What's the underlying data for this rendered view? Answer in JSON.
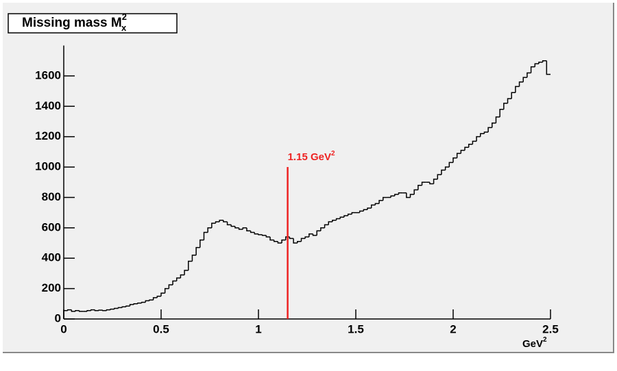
{
  "chart_data": {
    "type": "histogram",
    "title": {
      "text": "Missing mass M",
      "sup": "2",
      "sub": "x"
    },
    "x_label": {
      "text": "GeV",
      "sup": "2"
    },
    "annotation": {
      "text": "1.15 GeV",
      "sup": "2",
      "x": 1.15,
      "y": 1000,
      "color": "#ee2222"
    },
    "color": "#000000",
    "bins": [
      0,
      0.02,
      0.04,
      0.06,
      0.08,
      0.1,
      0.12,
      0.14,
      0.16,
      0.18,
      0.2,
      0.22,
      0.24,
      0.26,
      0.28,
      0.3,
      0.32,
      0.34,
      0.36,
      0.38,
      0.4,
      0.42,
      0.44,
      0.46,
      0.48,
      0.5,
      0.52,
      0.54,
      0.56,
      0.58,
      0.6,
      0.62,
      0.64,
      0.66,
      0.68,
      0.7,
      0.72,
      0.74,
      0.76,
      0.78,
      0.8,
      0.82,
      0.84,
      0.86,
      0.88,
      0.9,
      0.92,
      0.94,
      0.96,
      0.98,
      1,
      1.02,
      1.04,
      1.06,
      1.08,
      1.1,
      1.12,
      1.14,
      1.16,
      1.18,
      1.2,
      1.22,
      1.24,
      1.26,
      1.28,
      1.3,
      1.32,
      1.34,
      1.36,
      1.38,
      1.4,
      1.42,
      1.44,
      1.46,
      1.48,
      1.5,
      1.52,
      1.54,
      1.56,
      1.58,
      1.6,
      1.62,
      1.64,
      1.66,
      1.68,
      1.7,
      1.72,
      1.74,
      1.76,
      1.78,
      1.8,
      1.82,
      1.84,
      1.86,
      1.88,
      1.9,
      1.92,
      1.94,
      1.96,
      1.98,
      2,
      2.02,
      2.04,
      2.06,
      2.08,
      2.1,
      2.12,
      2.14,
      2.16,
      2.18,
      2.2,
      2.22,
      2.24,
      2.26,
      2.28,
      2.3,
      2.32,
      2.34,
      2.36,
      2.38,
      2.4,
      2.42,
      2.44,
      2.46,
      2.48,
      2.5
    ],
    "values": [
      55,
      60,
      50,
      55,
      50,
      50,
      55,
      60,
      55,
      58,
      55,
      60,
      65,
      70,
      75,
      80,
      85,
      95,
      100,
      105,
      110,
      120,
      125,
      140,
      150,
      170,
      200,
      225,
      250,
      270,
      290,
      320,
      380,
      420,
      470,
      520,
      570,
      600,
      630,
      640,
      650,
      640,
      620,
      610,
      600,
      590,
      600,
      580,
      570,
      560,
      555,
      550,
      540,
      520,
      510,
      500,
      520,
      540,
      530,
      500,
      510,
      530,
      540,
      560,
      550,
      580,
      600,
      620,
      640,
      650,
      660,
      670,
      680,
      690,
      700,
      700,
      710,
      720,
      730,
      750,
      760,
      780,
      800,
      800,
      810,
      820,
      830,
      830,
      800,
      820,
      850,
      880,
      900,
      900,
      890,
      920,
      950,
      980,
      1000,
      1030,
      1060,
      1090,
      1110,
      1130,
      1150,
      1170,
      1200,
      1220,
      1230,
      1260,
      1290,
      1330,
      1380,
      1420,
      1450,
      1490,
      1530,
      1560,
      1590,
      1620,
      1660,
      1680,
      1690,
      1700,
      1610
    ],
    "xlim": [
      0,
      2.5
    ],
    "xticks": [
      0,
      0.5,
      1,
      1.5,
      2,
      2.5
    ],
    "ylim": [
      0,
      1800
    ],
    "yticks": [
      0,
      200,
      400,
      600,
      800,
      1000,
      1200,
      1400,
      1600
    ]
  }
}
